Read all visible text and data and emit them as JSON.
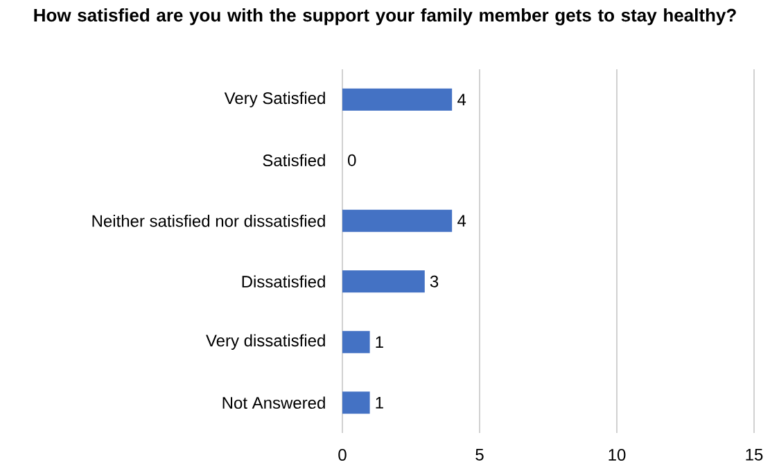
{
  "chart_data": {
    "type": "bar",
    "orientation": "horizontal",
    "title": "How satisfied are you with the support your family member gets to stay healthy?",
    "categories": [
      "Very Satisfied",
      "Satisfied",
      "Neither satisfied nor dissatisfied",
      "Dissatisfied",
      "Very dissatisfied",
      "Not Answered"
    ],
    "values": [
      4,
      0,
      4,
      3,
      1,
      1
    ],
    "color": "#4472c4",
    "xlim": [
      0,
      15
    ],
    "xticks": [
      0,
      5,
      10,
      15
    ],
    "grid": "x",
    "data_labels": true
  }
}
